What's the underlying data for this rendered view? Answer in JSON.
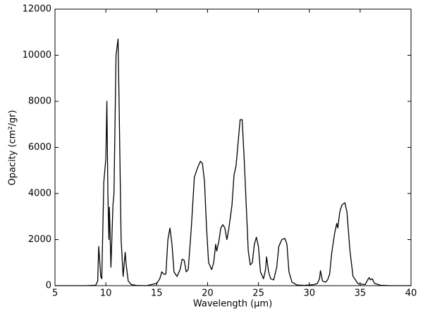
{
  "chart_data": {
    "type": "line",
    "xlabel": "Wavelength (μm)",
    "ylabel": "Opacity (cm²/gr)",
    "color": "#000000",
    "x": [
      5,
      8,
      9,
      9.2,
      9.3,
      9.5,
      9.6,
      9.8,
      10.0,
      10.1,
      10.2,
      10.3,
      10.35,
      10.5,
      10.7,
      10.8,
      11.0,
      11.2,
      11.3,
      11.5,
      11.7,
      11.9,
      12.0,
      12.2,
      12.5,
      13,
      14,
      15,
      15.3,
      15.5,
      15.7,
      15.9,
      16.1,
      16.3,
      16.5,
      16.7,
      17,
      17.3,
      17.5,
      17.7,
      17.9,
      18.1,
      18.4,
      18.7,
      19.0,
      19.3,
      19.5,
      19.7,
      19.9,
      20.1,
      20.4,
      20.6,
      20.8,
      20.9,
      21.1,
      21.3,
      21.5,
      21.7,
      21.9,
      22.1,
      22.4,
      22.6,
      22.8,
      23.0,
      23.2,
      23.4,
      23.6,
      23.8,
      24.0,
      24.2,
      24.4,
      24.6,
      24.8,
      25.0,
      25.2,
      25.5,
      25.7,
      25.8,
      26.0,
      26.2,
      26.5,
      26.8,
      27.0,
      27.3,
      27.6,
      27.8,
      28.0,
      28.3,
      28.8,
      29.5,
      30.5,
      30.8,
      31.0,
      31.1,
      31.3,
      31.6,
      31.8,
      32.0,
      32.2,
      32.5,
      32.7,
      32.8,
      33.0,
      33.2,
      33.5,
      33.7,
      34.0,
      34.3,
      34.8,
      35.5,
      35.8,
      35.9,
      36.0,
      36.2,
      36.4,
      37,
      38,
      40
    ],
    "values": [
      0,
      0,
      20,
      200,
      1700,
      400,
      300,
      4500,
      5500,
      8000,
      4000,
      2000,
      3400,
      800,
      3500,
      4000,
      10000,
      10700,
      8000,
      2000,
      400,
      1450,
      900,
      200,
      50,
      10,
      0,
      100,
      300,
      600,
      500,
      500,
      2000,
      2500,
      1800,
      600,
      400,
      700,
      1150,
      1100,
      600,
      700,
      2500,
      4700,
      5100,
      5400,
      5300,
      4500,
      2500,
      1000,
      700,
      1000,
      1800,
      1500,
      1900,
      2500,
      2650,
      2500,
      2000,
      2500,
      3500,
      4800,
      5200,
      6200,
      7200,
      7200,
      5500,
      3500,
      1500,
      900,
      1000,
      1800,
      2100,
      1700,
      600,
      300,
      700,
      1250,
      600,
      300,
      250,
      800,
      1700,
      2000,
      2050,
      1800,
      600,
      150,
      30,
      10,
      50,
      100,
      300,
      650,
      200,
      150,
      250,
      500,
      1400,
      2300,
      2700,
      2500,
      3200,
      3500,
      3600,
      3200,
      1500,
      400,
      80,
      50,
      300,
      350,
      250,
      300,
      100,
      20,
      0,
      0
    ],
    "xlim": [
      5,
      40
    ],
    "xticks": [
      5,
      10,
      15,
      20,
      25,
      30,
      35,
      40
    ],
    "ylim": [
      0,
      12000
    ],
    "yticks": [
      0,
      2000,
      4000,
      6000,
      8000,
      10000,
      12000
    ]
  }
}
